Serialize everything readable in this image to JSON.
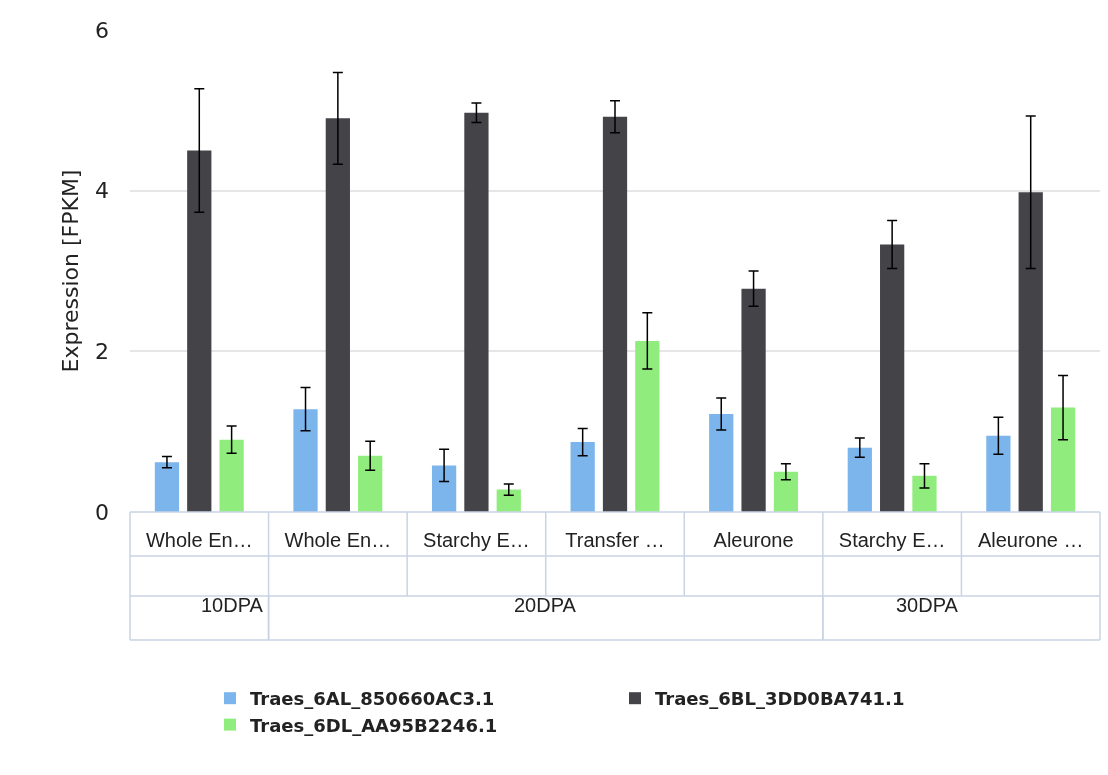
{
  "chart_data": {
    "type": "bar",
    "ylabel": "Expression [FPKM]",
    "categories": [
      "Whole En…",
      "Whole En…",
      "Starchy E…",
      "Transfer …",
      "Aleurone",
      "Starchy E…",
      "Aleurone …"
    ],
    "series": [
      {
        "name": "Traes_6AL_850660AC3.1",
        "color": "#7cb5ec",
        "values": [
          0.62,
          1.28,
          0.58,
          0.87,
          1.22,
          0.8,
          0.95
        ],
        "errors": [
          0.07,
          0.27,
          0.2,
          0.17,
          0.2,
          0.12,
          0.23
        ]
      },
      {
        "name": "Traes_6BL_3DD0BA741.1",
        "color": "#434348",
        "values": [
          4.5,
          4.9,
          4.97,
          4.92,
          2.78,
          3.33,
          3.98
        ],
        "errors": [
          0.77,
          0.57,
          0.12,
          0.2,
          0.22,
          0.3,
          0.95
        ]
      },
      {
        "name": "Traes_6DL_AA95B2246.1",
        "color": "#90ed7d",
        "values": [
          0.9,
          0.7,
          0.28,
          2.13,
          0.5,
          0.45,
          1.3
        ],
        "errors": [
          0.17,
          0.18,
          0.07,
          0.35,
          0.1,
          0.15,
          0.4
        ]
      }
    ],
    "annotations": [
      "10DPA",
      "20DPA",
      "30DPA"
    ],
    "ylim": [
      0,
      6
    ],
    "yticks": [
      0,
      2,
      4,
      6
    ],
    "grid": "y",
    "legend": "bottom"
  }
}
